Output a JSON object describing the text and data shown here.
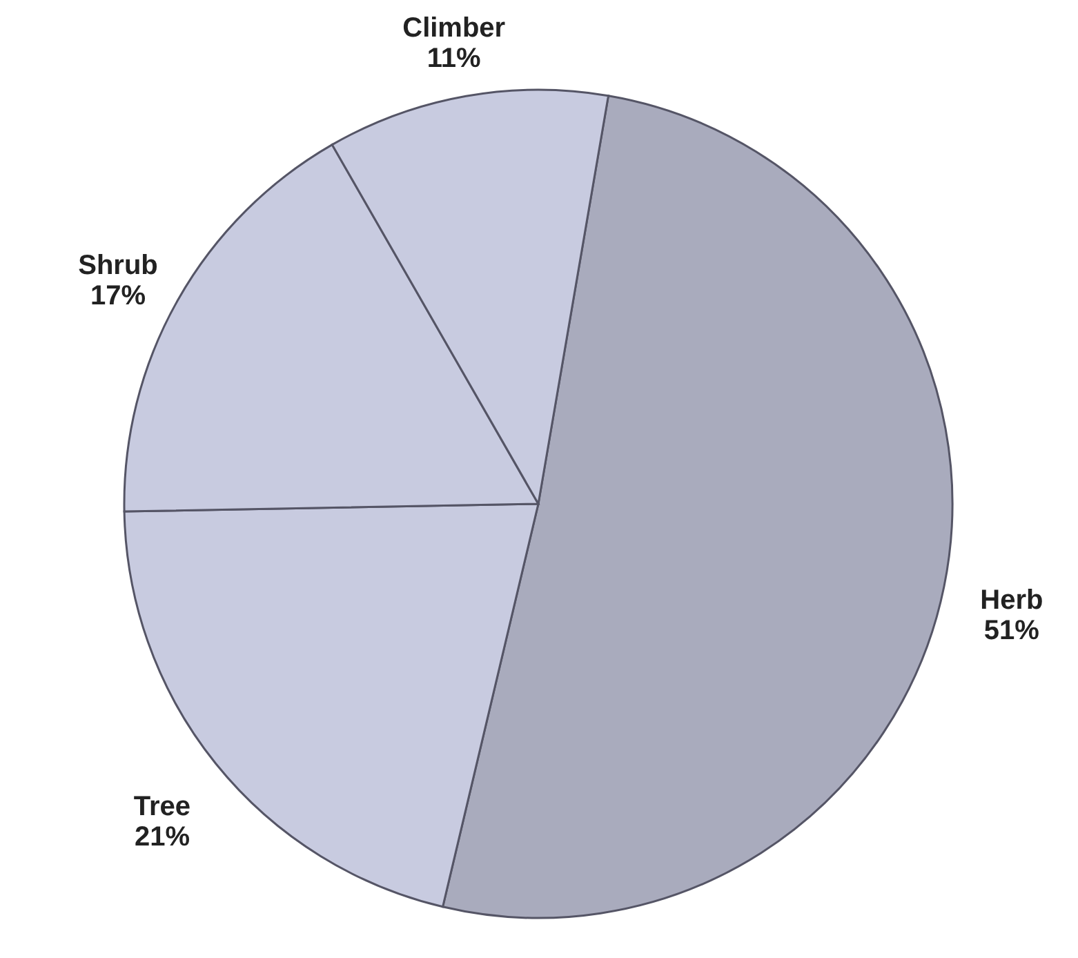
{
  "chart_data": {
    "type": "pie",
    "categories": [
      "Herb",
      "Tree",
      "Shrub",
      "Climber"
    ],
    "values": [
      51,
      21,
      17,
      11
    ],
    "colors": [
      "#a9abbd",
      "#c8cbe0",
      "#c8cbe0",
      "#c8cbe0"
    ],
    "value_labels": [
      "51%",
      "21%",
      "17%",
      "11%"
    ]
  }
}
